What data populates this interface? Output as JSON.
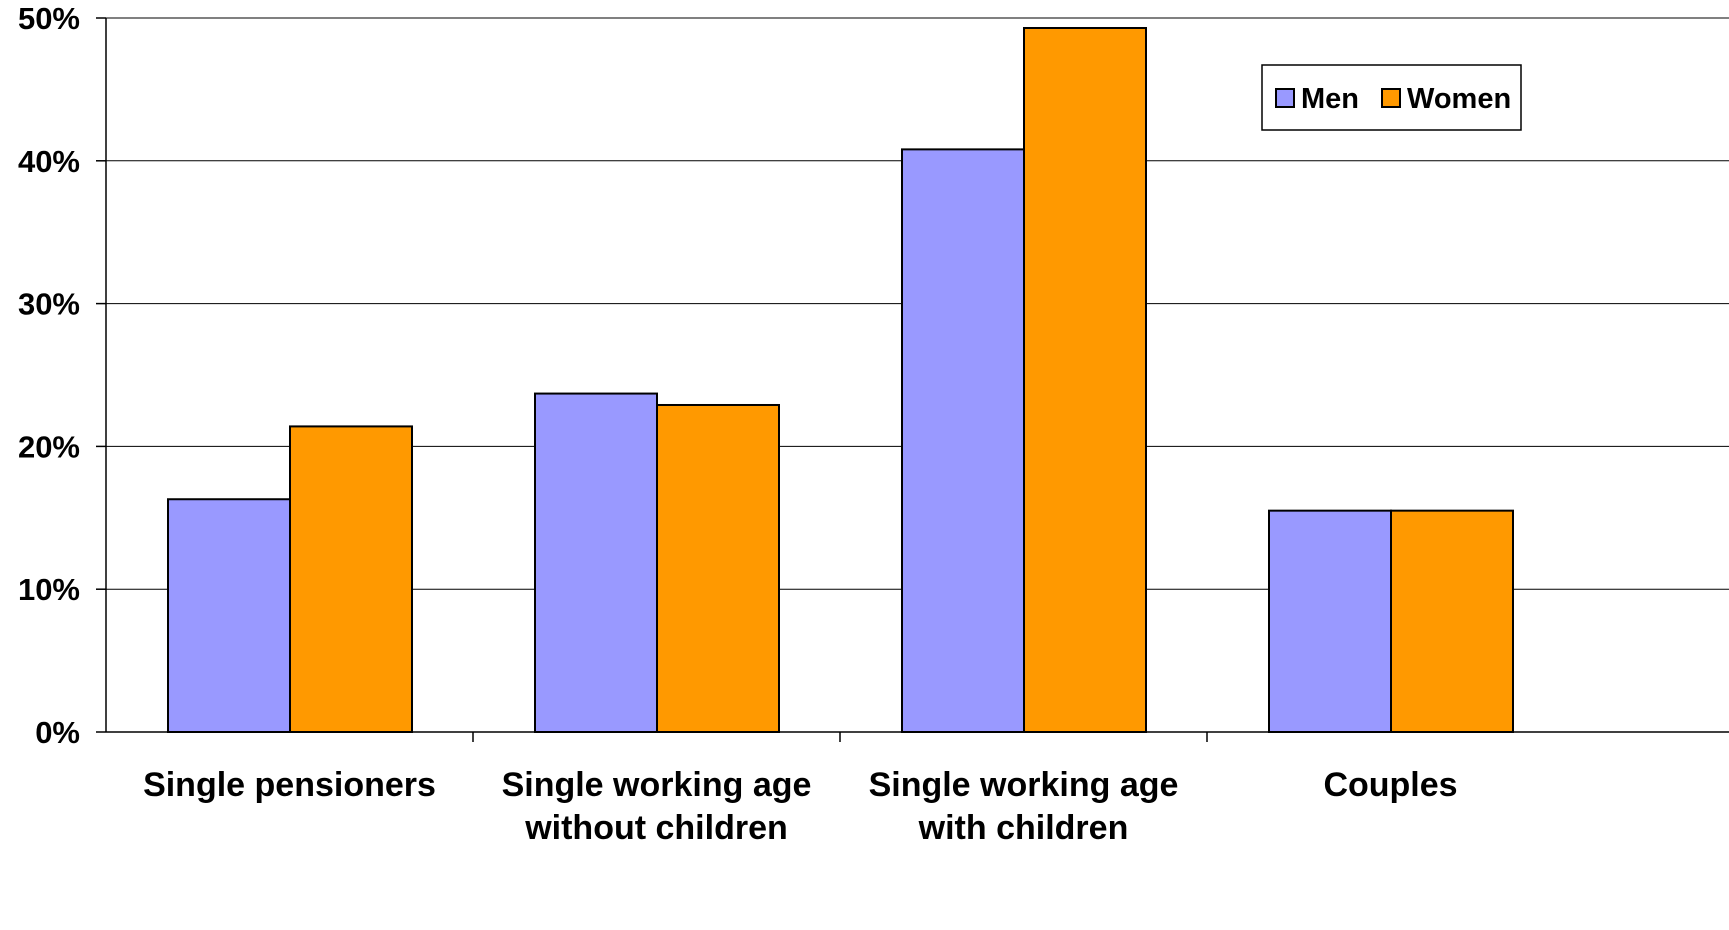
{
  "chart_data": {
    "type": "bar",
    "title": "",
    "xlabel": "",
    "ylabel": "",
    "ylim": [
      0,
      50
    ],
    "yticks": [
      0,
      10,
      20,
      30,
      40,
      50
    ],
    "ytick_format": "percent",
    "grid": true,
    "legend_position": "top-right",
    "categories": [
      [
        "Single pensioners"
      ],
      [
        "Single working age",
        "without children"
      ],
      [
        "Single working age",
        "with children"
      ],
      [
        "Couples"
      ]
    ],
    "series": [
      {
        "name": "Men",
        "color": "#9999ff",
        "values": [
          16.3,
          23.7,
          40.8,
          15.5
        ]
      },
      {
        "name": "Women",
        "color": "#ff9900",
        "values": [
          21.4,
          22.9,
          49.3,
          15.5
        ]
      }
    ]
  }
}
